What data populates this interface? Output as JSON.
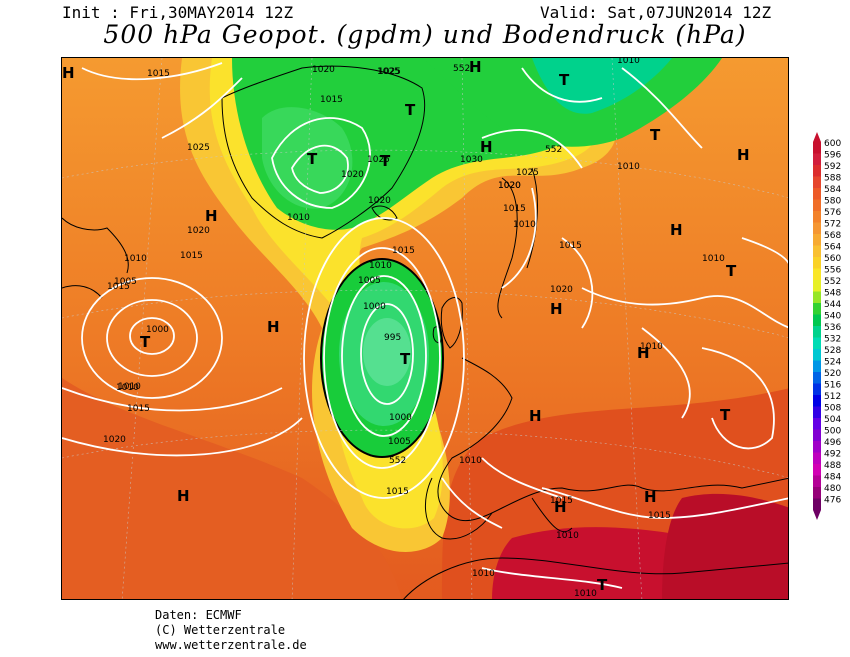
{
  "header": {
    "init": "Init : Fri,30MAY2014 12Z",
    "valid": "Valid: Sat,07JUN2014 12Z",
    "title": "500 hPa Geopot. (gpdm) und Bodendruck (hPa)"
  },
  "footer": {
    "data": "Daten: ECMWF",
    "copyright": "(C) Wetterzentrale",
    "url": "www.wetterzentrale.de"
  },
  "legend": {
    "labels": [
      "600",
      "596",
      "592",
      "588",
      "584",
      "580",
      "576",
      "572",
      "568",
      "564",
      "560",
      "556",
      "552",
      "548",
      "544",
      "540",
      "536",
      "532",
      "528",
      "524",
      "520",
      "516",
      "512",
      "508",
      "504",
      "500",
      "496",
      "492",
      "488",
      "484",
      "480",
      "476"
    ],
    "colors": [
      "#c8102e",
      "#d21e3c",
      "#dc2d2d",
      "#e6462d",
      "#ed5a28",
      "#f06e28",
      "#f3822a",
      "#f59632",
      "#f7aa32",
      "#f9c032",
      "#fad228",
      "#fae628",
      "#e6f028",
      "#96e628",
      "#32d232",
      "#00c850",
      "#00d28c",
      "#00dcb4",
      "#00c8d2",
      "#0096e6",
      "#0064e6",
      "#0032e6",
      "#0000e6",
      "#3200e6",
      "#6400e6",
      "#8200d2",
      "#a000c8",
      "#be00be",
      "#d200b4",
      "#b40096",
      "#960078",
      "#6e0064"
    ]
  },
  "map": {
    "pressure_labels": [
      "1015",
      "1020",
      "1025",
      "1015",
      "1025",
      "1020",
      "1015",
      "1010",
      "1015",
      "1010",
      "1005",
      "1000",
      "1010",
      "1015",
      "1020",
      "1025",
      "552",
      "1020",
      "1025",
      "1030",
      "552",
      "1020",
      "1020",
      "1010",
      "1025",
      "1020",
      "1015",
      "1010",
      "1015",
      "1015",
      "1010",
      "1005",
      "1000",
      "995",
      "1000",
      "1005",
      "552",
      "1010",
      "1010",
      "1015",
      "1010",
      "1015",
      "1010",
      "1010",
      "1020",
      "1010",
      "1015",
      "1010",
      "1010"
    ],
    "centers": [
      "H",
      "H",
      "T",
      "H",
      "H",
      "T",
      "T",
      "T",
      "T",
      "H",
      "T",
      "H",
      "T",
      "H",
      "H",
      "H",
      "T",
      "H",
      "T",
      "H",
      "H",
      "H",
      "H",
      "H",
      "T"
    ]
  }
}
